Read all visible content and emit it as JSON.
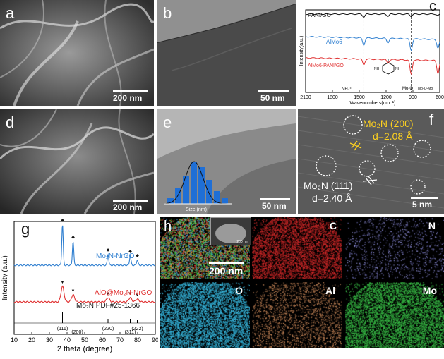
{
  "panels": {
    "a": {
      "label": "a",
      "scale": "200 nm"
    },
    "b": {
      "label": "b",
      "scale": "50 nm"
    },
    "c": {
      "label": "c"
    },
    "d": {
      "label": "d",
      "scale": "200 nm"
    },
    "e": {
      "label": "e",
      "scale": "50 nm",
      "hist_xlabel": "Size (nm)"
    },
    "f": {
      "label": "f",
      "scale": "5 nm",
      "ann1_line1": "Mo₂N (200)",
      "ann1_line2": "d=2.08 Å",
      "ann2_line1": "Mo₂N (111)",
      "ann2_line2": "d=2.40 Å"
    },
    "g": {
      "label": "g"
    },
    "h": {
      "label": "h",
      "scale": "200 nm",
      "inset_scale": "200 nm",
      "maps": [
        "C",
        "N",
        "O",
        "Al",
        "Mo"
      ]
    }
  },
  "chart_data": [
    {
      "panel": "c",
      "type": "line",
      "xlabel": "Wavenumbers(cm⁻¹)",
      "ylabel": "Intensity(a.u.)",
      "xlim": [
        2100,
        600
      ],
      "xticks": [
        "2100",
        "1800",
        "1500",
        "1200",
        "900",
        "600"
      ],
      "series": [
        {
          "name": "PANI/GO",
          "color": "#111111"
        },
        {
          "name": "AlMo6",
          "color": "#2f7fd0"
        },
        {
          "name": "AlMo6-PANI/GO",
          "color": "#e03030"
        }
      ],
      "annotations": [
        "NH₄⁺",
        "Mo-O",
        "Mo-O-Mo",
        "NH",
        "NH"
      ],
      "reference_lines": [
        1450,
        1180,
        920,
        620
      ]
    },
    {
      "panel": "g",
      "type": "line",
      "xlabel": "2 theta (degree)",
      "ylabel": "Intensity (a.u.)",
      "xlim": [
        10,
        90
      ],
      "xticks": [
        "10",
        "20",
        "30",
        "40",
        "50",
        "60",
        "70",
        "80",
        "90"
      ],
      "series": [
        {
          "name": "Mo₂N-NrGO",
          "color": "#2f7fd0",
          "peaks": [
            37.4,
            43.4,
            63.2,
            75.8,
            79.8
          ]
        },
        {
          "name": "AlO@Mo₂N-NrGO",
          "color": "#e03030",
          "peaks": [
            37.4,
            43.4,
            63.2,
            75.8,
            79.8
          ]
        }
      ],
      "reference_label": "Mo₂N PDF#25-1366",
      "reference_peaks": [
        {
          "x": 37.4,
          "label": "(111)"
        },
        {
          "x": 43.4,
          "label": "(200)"
        },
        {
          "x": 63.2,
          "label": "(220)"
        },
        {
          "x": 75.8,
          "label": "(311)"
        },
        {
          "x": 79.8,
          "label": "(222)"
        }
      ]
    }
  ]
}
